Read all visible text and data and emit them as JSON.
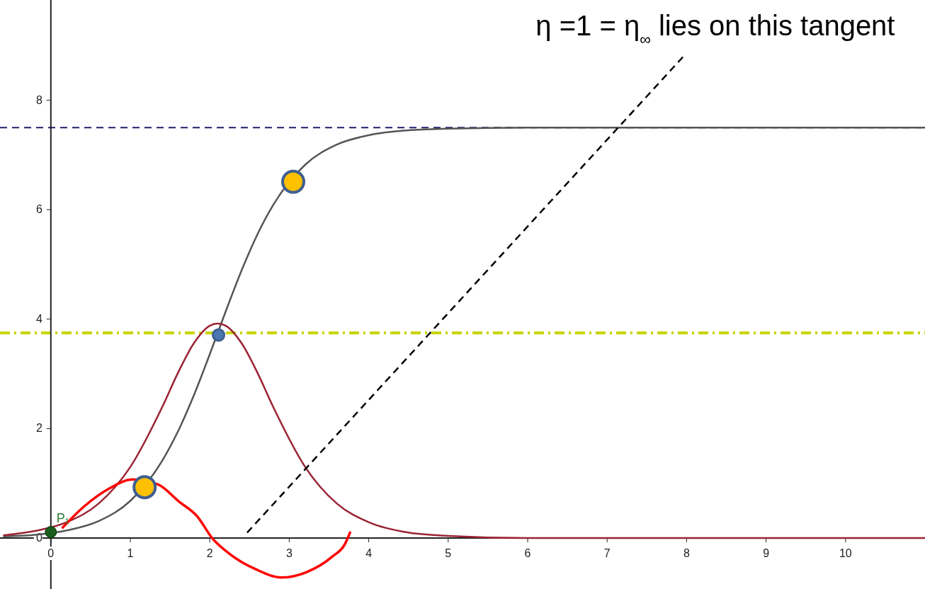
{
  "chart_data": {
    "type": "line",
    "xlim": [
      -0.64,
      11.0
    ],
    "ylim": [
      -0.93,
      9.83
    ],
    "xticks": [
      0,
      1,
      2,
      3,
      4,
      5,
      6,
      7,
      8,
      9,
      10
    ],
    "yticks": [
      0,
      2,
      4,
      6,
      8
    ],
    "grid": false,
    "series": [
      {
        "color": "#555555",
        "line_style": "solid",
        "x": [
          -0.6,
          -0.2,
          0.2,
          0.6,
          1.0,
          1.4,
          1.6,
          1.8,
          2.0,
          2.1,
          2.2,
          2.4,
          2.6,
          2.8,
          3.2,
          3.6,
          4.0,
          4.5,
          5.0,
          6.0,
          8.0,
          11.0
        ],
        "values": [
          0.03,
          0.06,
          0.14,
          0.31,
          0.68,
          1.41,
          1.95,
          2.61,
          3.36,
          3.75,
          4.14,
          4.89,
          5.55,
          6.09,
          6.82,
          7.19,
          7.36,
          7.45,
          7.48,
          7.5,
          7.5,
          7.5
        ]
      },
      {
        "color": "#9b2335",
        "line_style": "solid",
        "x": [
          -0.6,
          -0.2,
          0.2,
          0.6,
          1.0,
          1.4,
          1.6,
          1.8,
          2.0,
          2.1,
          2.2,
          2.4,
          2.6,
          2.8,
          3.2,
          3.6,
          4.0,
          4.5,
          5.0,
          6.0,
          8.0,
          11.0
        ],
        "values": [
          0.05,
          0.13,
          0.29,
          0.63,
          1.3,
          2.39,
          3.02,
          3.56,
          3.88,
          3.92,
          3.88,
          3.56,
          3.02,
          2.39,
          1.3,
          0.63,
          0.29,
          0.1,
          0.04,
          0.0,
          0.0,
          0.0
        ]
      },
      {
        "color": "#ff0000",
        "line_style": "solid",
        "x": [
          0.14,
          0.42,
          0.74,
          1.03,
          1.35,
          1.61,
          1.84,
          2.03,
          2.26,
          2.58,
          2.9,
          3.22,
          3.54,
          3.7,
          3.77
        ],
        "values": [
          0.18,
          0.58,
          0.91,
          1.07,
          0.98,
          0.67,
          0.4,
          0.0,
          -0.3,
          -0.57,
          -0.72,
          -0.62,
          -0.34,
          -0.11,
          0.12
        ]
      },
      {
        "color": "#000000",
        "line_style": "dashed",
        "x": [
          2.47,
          7.96
        ],
        "values": [
          0.1,
          8.8
        ]
      },
      {
        "type": "scatter",
        "color": "#ffc000",
        "marker": "circle",
        "x": [
          1.18,
          3.05
        ],
        "values": [
          0.93,
          6.51
        ]
      },
      {
        "type": "scatter",
        "color": "#4a76b0",
        "marker": "circle",
        "x": [
          2.11
        ],
        "values": [
          3.71
        ]
      },
      {
        "type": "scatter",
        "color": "#1a5c1a",
        "marker": "circle",
        "x": [
          0
        ],
        "values": [
          0.11
        ]
      }
    ],
    "ref_lines": [
      {
        "axis": "y",
        "value": 7.5,
        "color": "#1f1f6e",
        "line_style": "dashed"
      },
      {
        "axis": "y",
        "value": 3.75,
        "color": "#c8d400",
        "line_style": "dashdot"
      }
    ],
    "annotations": [
      {
        "text": "η =1 = η$_{∞}$ lies on this tangent",
        "x": 7.96,
        "y": 8.8
      },
      {
        "text": "P₁",
        "x": 0,
        "y": 0.11
      }
    ]
  }
}
